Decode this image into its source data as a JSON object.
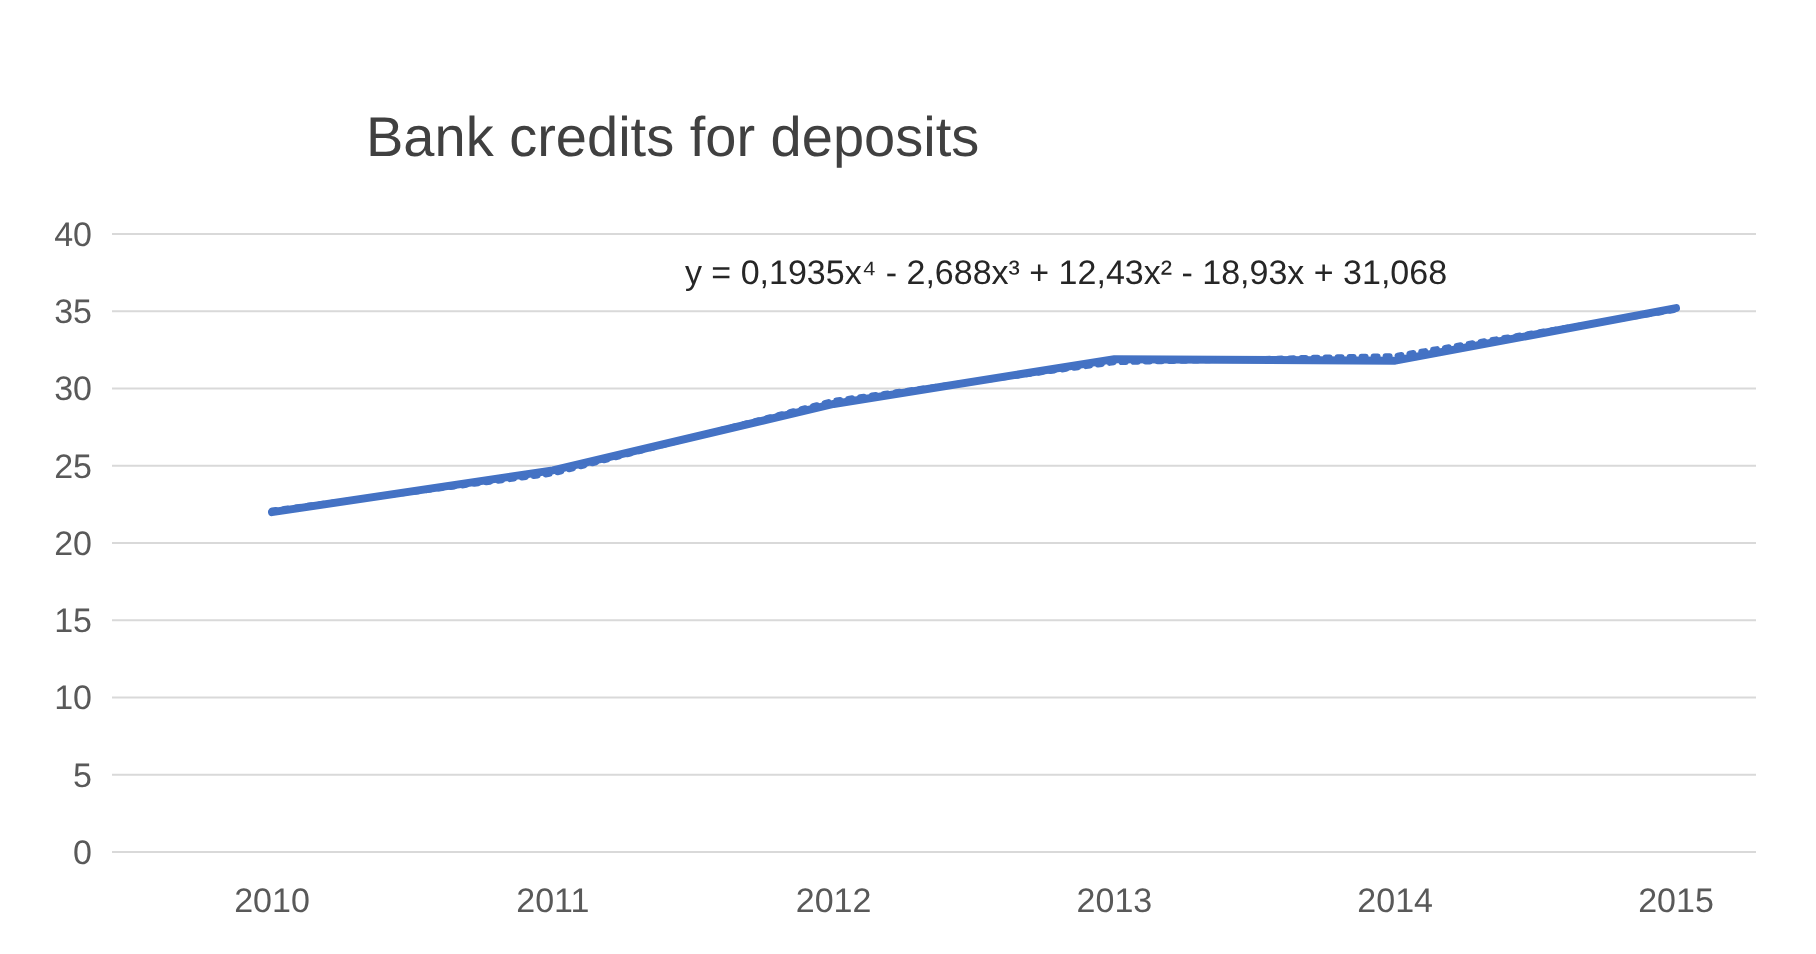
{
  "chart_data": {
    "type": "line",
    "title": "Bank credits for deposits",
    "categories": [
      "2010",
      "2011",
      "2012",
      "2013",
      "2014",
      "2015"
    ],
    "series": [
      {
        "color": "#4472c4",
        "values": [
          22.0,
          24.7,
          29.0,
          31.9,
          31.8,
          35.2
        ],
        "line_style": "solid"
      },
      {
        "type": "line",
        "color": "#4472c4",
        "values": [
          22.1,
          24.5,
          29.2,
          31.7,
          32.1,
          35.1
        ],
        "line_style": "dotted"
      }
    ],
    "ylim": [
      0,
      40
    ],
    "yticks": [
      0,
      5,
      10,
      15,
      20,
      25,
      30,
      35,
      40
    ],
    "grid": "y",
    "marker": "none",
    "annotations": [
      "y = 0,1935x⁴ - 2,688x³ + 12,43x² - 18,93x + 31,068"
    ]
  }
}
